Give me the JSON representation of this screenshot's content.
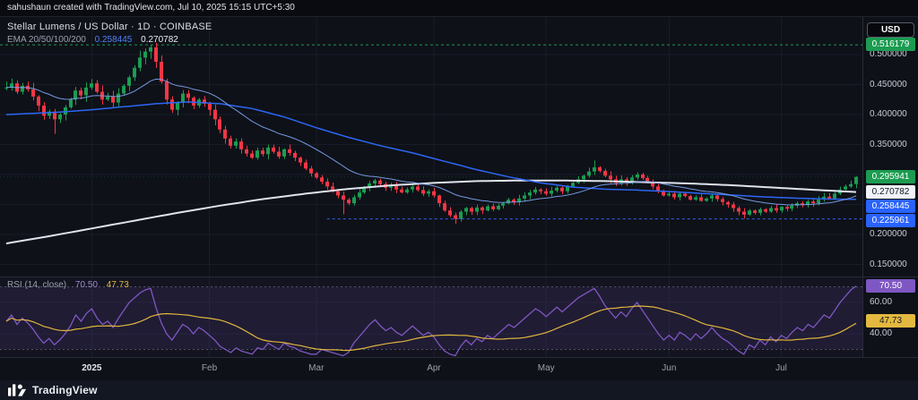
{
  "attribution": {
    "text": "sahushaun created with TradingView.com, Jul 10, 2025 15:15 UTC+5:30"
  },
  "header": {
    "symbol_title": "Stellar Lumens / US Dollar · 1D · COINBASE",
    "indicator_label": "EMA 20/50/100/200",
    "ema_value_blue": "0.258445",
    "ema_value_white": "0.270782"
  },
  "rsi_header": {
    "label": "RSI (14, close)",
    "value_main": "70.50",
    "value_ma": "47.73"
  },
  "axis": {
    "currency_button": "USD",
    "price_labels": [
      {
        "text": "0.500000",
        "value": 0.5
      },
      {
        "text": "0.450000",
        "value": 0.45
      },
      {
        "text": "0.400000",
        "value": 0.4
      },
      {
        "text": "0.350000",
        "value": 0.35
      },
      {
        "text": "0.200000",
        "value": 0.2
      },
      {
        "text": "0.150000",
        "value": 0.15
      }
    ],
    "price_badges": [
      {
        "text": "0.516179",
        "value": 0.516179,
        "type": "high-level",
        "bg": "#1b9c51",
        "fg": "#ffffff"
      },
      {
        "text": "0.295941",
        "value": 0.295941,
        "type": "last-price",
        "bg": "#1b9c51",
        "fg": "#ffffff"
      },
      {
        "text": "0.270782",
        "value": 0.270782,
        "type": "ema-white",
        "bg": "#f0f3fa",
        "fg": "#131722"
      },
      {
        "text": "0.258445",
        "value": 0.258445,
        "type": "ema-blue",
        "bg": "#2962ff",
        "fg": "#ffffff"
      },
      {
        "text": "0.225961",
        "value": 0.225961,
        "type": "support-level",
        "bg": "#2962ff",
        "fg": "#ffffff"
      }
    ],
    "rsi_labels": [
      {
        "text": "60.00",
        "value": 60
      },
      {
        "text": "40.00",
        "value": 40
      }
    ],
    "rsi_badges": [
      {
        "text": "70.50",
        "value": 70.5,
        "type": "rsi",
        "bg": "#7e57c2",
        "fg": "#ffffff"
      },
      {
        "text": "47.73",
        "value": 47.73,
        "type": "rsi-ma",
        "bg": "#e3b93f",
        "fg": "#131722"
      }
    ]
  },
  "footer": {
    "brand": "TradingView"
  },
  "colors": {
    "up": "#1b9c51",
    "down": "#f23645",
    "blue": "#2d66f5",
    "light_blue": "#7fa7f5",
    "white_line": "#dfe3ec",
    "purple": "#7e57c2",
    "yellow": "#e0b63d",
    "grid": "#171c27",
    "band_line": "#7e8391",
    "rsi_pane": "rgba(126,87,194,0.05)",
    "rsi_band": "rgba(126,87,194,0.13)"
  },
  "chart_data": {
    "type": "candlestick",
    "title": "Stellar Lumens / US Dollar, 1D, COINBASE",
    "last_price": 0.295941,
    "levels": {
      "high": 0.516179,
      "support": 0.225961,
      "support_start_index": 60
    },
    "ema_last": {
      "blue": 0.258445,
      "white": 0.270782
    },
    "price_axis": {
      "ylim": [
        0.135,
        0.53
      ],
      "grid": [
        0.5,
        0.45,
        0.4,
        0.35,
        0.3,
        0.25,
        0.2,
        0.15
      ]
    },
    "x_axis": {
      "ticks": [
        {
          "label": "2025",
          "index": 16,
          "major": true
        },
        {
          "label": "Feb",
          "index": 38
        },
        {
          "label": "Mar",
          "index": 58
        },
        {
          "label": "Apr",
          "index": 80
        },
        {
          "label": "May",
          "index": 101
        },
        {
          "label": "Jun",
          "index": 124
        },
        {
          "label": "Jul",
          "index": 145
        }
      ]
    },
    "candles_close": [
      0.445,
      0.452,
      0.438,
      0.448,
      0.442,
      0.43,
      0.415,
      0.398,
      0.405,
      0.392,
      0.4,
      0.412,
      0.425,
      0.44,
      0.432,
      0.445,
      0.452,
      0.438,
      0.425,
      0.43,
      0.42,
      0.435,
      0.448,
      0.462,
      0.478,
      0.495,
      0.505,
      0.512,
      0.488,
      0.455,
      0.425,
      0.408,
      0.42,
      0.435,
      0.428,
      0.415,
      0.425,
      0.418,
      0.408,
      0.392,
      0.375,
      0.36,
      0.348,
      0.355,
      0.342,
      0.335,
      0.328,
      0.34,
      0.334,
      0.345,
      0.338,
      0.33,
      0.342,
      0.336,
      0.328,
      0.32,
      0.31,
      0.302,
      0.295,
      0.288,
      0.28,
      0.272,
      0.265,
      0.258,
      0.252,
      0.262,
      0.27,
      0.278,
      0.285,
      0.29,
      0.284,
      0.278,
      0.282,
      0.275,
      0.27,
      0.275,
      0.28,
      0.274,
      0.268,
      0.272,
      0.265,
      0.252,
      0.24,
      0.232,
      0.226,
      0.238,
      0.244,
      0.238,
      0.245,
      0.24,
      0.247,
      0.242,
      0.248,
      0.252,
      0.258,
      0.254,
      0.26,
      0.265,
      0.27,
      0.275,
      0.272,
      0.268,
      0.273,
      0.278,
      0.272,
      0.28,
      0.286,
      0.292,
      0.298,
      0.305,
      0.312,
      0.306,
      0.298,
      0.292,
      0.286,
      0.292,
      0.288,
      0.295,
      0.3,
      0.294,
      0.288,
      0.28,
      0.272,
      0.265,
      0.268,
      0.262,
      0.268,
      0.264,
      0.258,
      0.262,
      0.256,
      0.26,
      0.265,
      0.259,
      0.254,
      0.25,
      0.244,
      0.238,
      0.233,
      0.24,
      0.236,
      0.242,
      0.238,
      0.244,
      0.24,
      0.246,
      0.243,
      0.248,
      0.252,
      0.249,
      0.255,
      0.252,
      0.258,
      0.263,
      0.26,
      0.268,
      0.275,
      0.28,
      0.284,
      0.295941
    ],
    "wick_overrides": {
      "9": {
        "low": 0.368
      },
      "27": {
        "high": 0.516179
      },
      "63": {
        "low": 0.2335
      },
      "84": {
        "low": 0.218
      },
      "110": {
        "high": 0.3235
      },
      "138": {
        "low": 0.2265
      },
      "159": {
        "high": 0.2972
      }
    },
    "ema_blue_keyframes": [
      [
        0,
        0.4
      ],
      [
        10,
        0.404
      ],
      [
        16,
        0.408
      ],
      [
        22,
        0.413
      ],
      [
        28,
        0.418
      ],
      [
        34,
        0.421
      ],
      [
        40,
        0.418
      ],
      [
        46,
        0.41
      ],
      [
        52,
        0.396
      ],
      [
        58,
        0.378
      ],
      [
        64,
        0.362
      ],
      [
        70,
        0.348
      ],
      [
        76,
        0.336
      ],
      [
        82,
        0.322
      ],
      [
        88,
        0.308
      ],
      [
        94,
        0.296
      ],
      [
        100,
        0.286
      ],
      [
        106,
        0.279
      ],
      [
        112,
        0.2755
      ],
      [
        118,
        0.274
      ],
      [
        124,
        0.2715
      ],
      [
        130,
        0.2685
      ],
      [
        136,
        0.2655
      ],
      [
        142,
        0.2625
      ],
      [
        148,
        0.2605
      ],
      [
        154,
        0.259
      ],
      [
        159,
        0.258445
      ]
    ],
    "ema_white_keyframes": [
      [
        0,
        0.185
      ],
      [
        8,
        0.197
      ],
      [
        16,
        0.21
      ],
      [
        24,
        0.223
      ],
      [
        32,
        0.236
      ],
      [
        40,
        0.248
      ],
      [
        48,
        0.259
      ],
      [
        56,
        0.268
      ],
      [
        64,
        0.276
      ],
      [
        72,
        0.282
      ],
      [
        80,
        0.286
      ],
      [
        88,
        0.289
      ],
      [
        96,
        0.29
      ],
      [
        104,
        0.29
      ],
      [
        112,
        0.289
      ],
      [
        120,
        0.287
      ],
      [
        128,
        0.285
      ],
      [
        136,
        0.282
      ],
      [
        144,
        0.278
      ],
      [
        152,
        0.274
      ],
      [
        159,
        0.270782
      ]
    ],
    "rsi": {
      "label": "RSI (14, close)",
      "last": 70.5,
      "ma_last": 47.73,
      "ylim": [
        25,
        75
      ],
      "band": [
        30,
        70
      ],
      "grid": [
        60,
        40
      ],
      "values": [
        48,
        52,
        46,
        50,
        47,
        43,
        38,
        34,
        37,
        33,
        36,
        40,
        45,
        52,
        48,
        53,
        56,
        50,
        46,
        48,
        44,
        50,
        55,
        60,
        63,
        66,
        68,
        69,
        57,
        47,
        40,
        36,
        41,
        46,
        44,
        40,
        44,
        42,
        39,
        36,
        32,
        30,
        28,
        31,
        29,
        28,
        27,
        31,
        30,
        34,
        32,
        30,
        34,
        32,
        31,
        29,
        28,
        27,
        27,
        30,
        29,
        28,
        27,
        26,
        28,
        34,
        38,
        42,
        46,
        49,
        45,
        42,
        44,
        41,
        39,
        42,
        45,
        42,
        39,
        41,
        38,
        33,
        29,
        27,
        26,
        32,
        36,
        33,
        37,
        35,
        39,
        37,
        40,
        43,
        46,
        44,
        47,
        50,
        53,
        56,
        54,
        51,
        54,
        57,
        54,
        57,
        60,
        63,
        65,
        67,
        69,
        64,
        58,
        54,
        50,
        54,
        51,
        56,
        60,
        55,
        50,
        45,
        40,
        36,
        39,
        36,
        41,
        39,
        36,
        40,
        37,
        40,
        44,
        40,
        37,
        35,
        32,
        29,
        27,
        33,
        31,
        36,
        33,
        38,
        35,
        39,
        37,
        41,
        44,
        42,
        46,
        44,
        48,
        52,
        50,
        55,
        60,
        64,
        68,
        70.5
      ]
    }
  }
}
